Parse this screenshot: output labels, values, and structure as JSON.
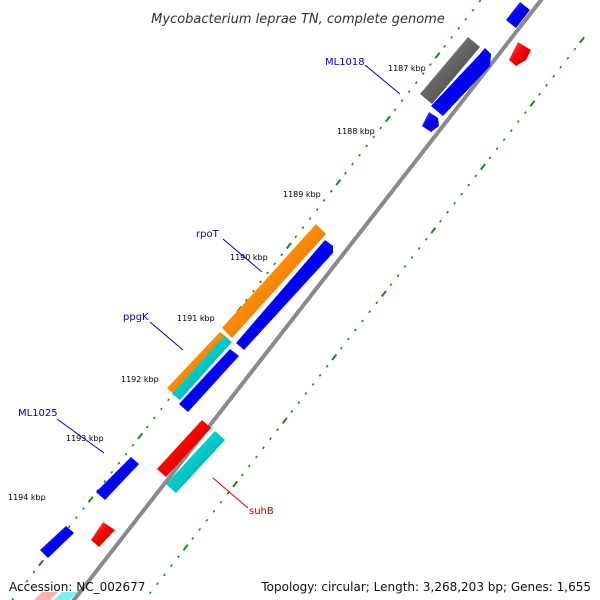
{
  "title": "Mycobacterium leprae TN, complete genome",
  "footer": {
    "accession": "Accession: NC_002677",
    "summary": "Topology: circular; Length: 3,268,203 bp; Genes: 1,655"
  },
  "ticks": [
    {
      "label": "1187 kbp"
    },
    {
      "label": "1188 kbp"
    },
    {
      "label": "1189 kbp"
    },
    {
      "label": "1190 kbp"
    },
    {
      "label": "1191 kbp"
    },
    {
      "label": "1192 kbp"
    },
    {
      "label": "1193 kbp"
    },
    {
      "label": "1194 kbp"
    }
  ],
  "genes": [
    {
      "label": "ML1018",
      "color": "#0000cc"
    },
    {
      "label": "rpoT",
      "color": "#0000cc"
    },
    {
      "label": "ppgK",
      "color": "#0000cc"
    },
    {
      "label": "ML1025",
      "color": "#0000cc"
    },
    {
      "label": "suhB",
      "color": "#cc0000"
    }
  ],
  "colors": {
    "backbone": "#888888",
    "tick": "#1a8a1a",
    "forward_cds": "#0000ff",
    "reverse_cds": "#ff0000",
    "orange_feature": "#ff8c00",
    "cyan_feature": "#00cccc",
    "gray_feature": "#666666"
  }
}
